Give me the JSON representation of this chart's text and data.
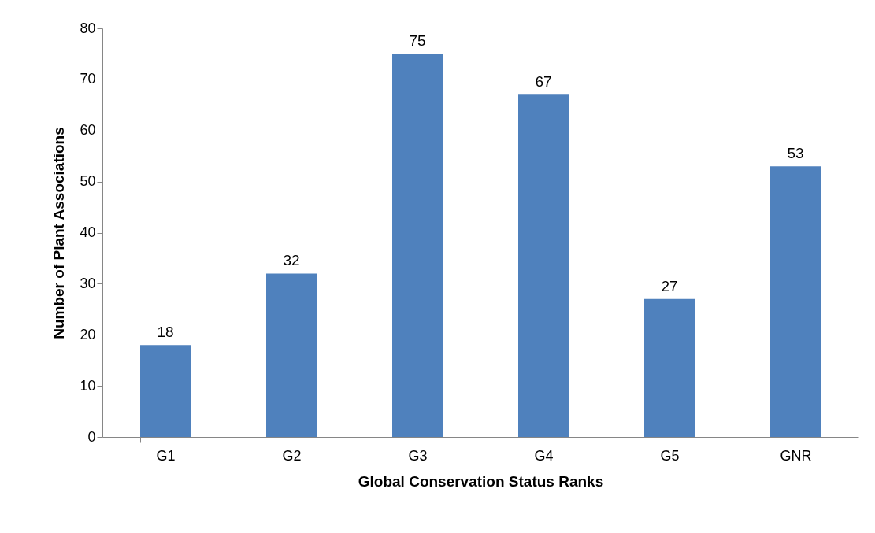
{
  "chart_data": {
    "type": "bar",
    "xlabel": "Global Conservation Status Ranks",
    "ylabel": "Number of Plant Associations",
    "categories": [
      "G1",
      "G2",
      "G3",
      "G4",
      "G5",
      "GNR"
    ],
    "values": [
      18,
      32,
      75,
      67,
      27,
      53
    ],
    "color": "#4f81bd",
    "ylim": [
      0,
      80
    ],
    "yticks": [
      0,
      10,
      20,
      30,
      40,
      50,
      60,
      70,
      80
    ],
    "grid": false,
    "data_labels": true
  }
}
